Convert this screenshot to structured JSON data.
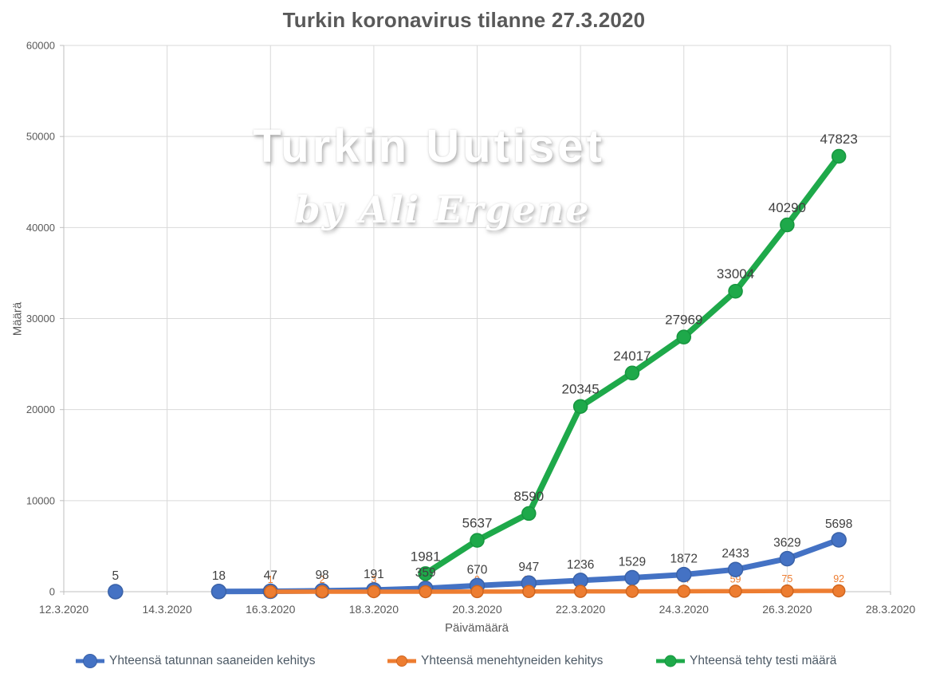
{
  "title": "Turkin koronavirus tilanne 27.3.2020",
  "watermark": {
    "line1": "Turkin Uutiset",
    "line2": "by Ali Ergene"
  },
  "chart_data": {
    "type": "line",
    "title": "Turkin koronavirus tilanne 27.3.2020",
    "xlabel": "Päivämäärä",
    "ylabel": "Määrä",
    "ylim": [
      0,
      60000
    ],
    "ytick_step": 10000,
    "grid": true,
    "legend_position": "bottom",
    "x_domain_days": [
      12,
      28
    ],
    "x_ticks": [
      {
        "day": 12,
        "label": "12.3.2020"
      },
      {
        "day": 14,
        "label": "14.3.2020"
      },
      {
        "day": 16,
        "label": "16.3.2020"
      },
      {
        "day": 18,
        "label": "18.3.2020"
      },
      {
        "day": 20,
        "label": "20.3.2020"
      },
      {
        "day": 22,
        "label": "22.3.2020"
      },
      {
        "day": 24,
        "label": "24.3.2020"
      },
      {
        "day": 26,
        "label": "26.3.2020"
      },
      {
        "day": 28,
        "label": "28.3.2020"
      }
    ],
    "series": [
      {
        "name": "Yhteensä tatunnan saaneiden kehitys",
        "color": "#4472C4",
        "marker_stroke": "#3A62A8",
        "label_color": "#404040",
        "label_size": 15.5,
        "label_dy": -15,
        "line_width": 7,
        "marker_radius": 9,
        "labels_behind": false,
        "days": [
          13,
          15,
          16,
          17,
          18,
          19,
          20,
          21,
          22,
          23,
          24,
          25,
          26,
          27
        ],
        "values": [
          5,
          18,
          47,
          98,
          191,
          359,
          670,
          947,
          1236,
          1529,
          1872,
          2433,
          3629,
          5698
        ]
      },
      {
        "name": "Yhteensä menehtyneiden kehitys",
        "color": "#ED7D31",
        "marker_stroke": "#D0661F",
        "label_color": "#ED7D31",
        "label_size": 12.5,
        "label_dy": -11,
        "line_width": 5.5,
        "marker_radius": 7.5,
        "labels_behind": true,
        "days": [
          16,
          17,
          18,
          19,
          20,
          21,
          22,
          23,
          24,
          25,
          26,
          27
        ],
        "values": [
          1,
          2,
          3,
          4,
          9,
          21,
          30,
          37,
          44,
          59,
          75,
          92
        ]
      },
      {
        "name": "Yhteensä tehty testi määrä",
        "color": "#1EA94A",
        "marker_stroke": "#17963F",
        "label_color": "#404040",
        "label_size": 17,
        "label_dy": -16,
        "line_width": 7.5,
        "marker_radius": 8.5,
        "labels_behind": false,
        "days": [
          19,
          20,
          21,
          22,
          23,
          24,
          25,
          26,
          27
        ],
        "values": [
          1981,
          5637,
          8590,
          20345,
          24017,
          27969,
          33004,
          40290,
          47823
        ]
      }
    ]
  }
}
